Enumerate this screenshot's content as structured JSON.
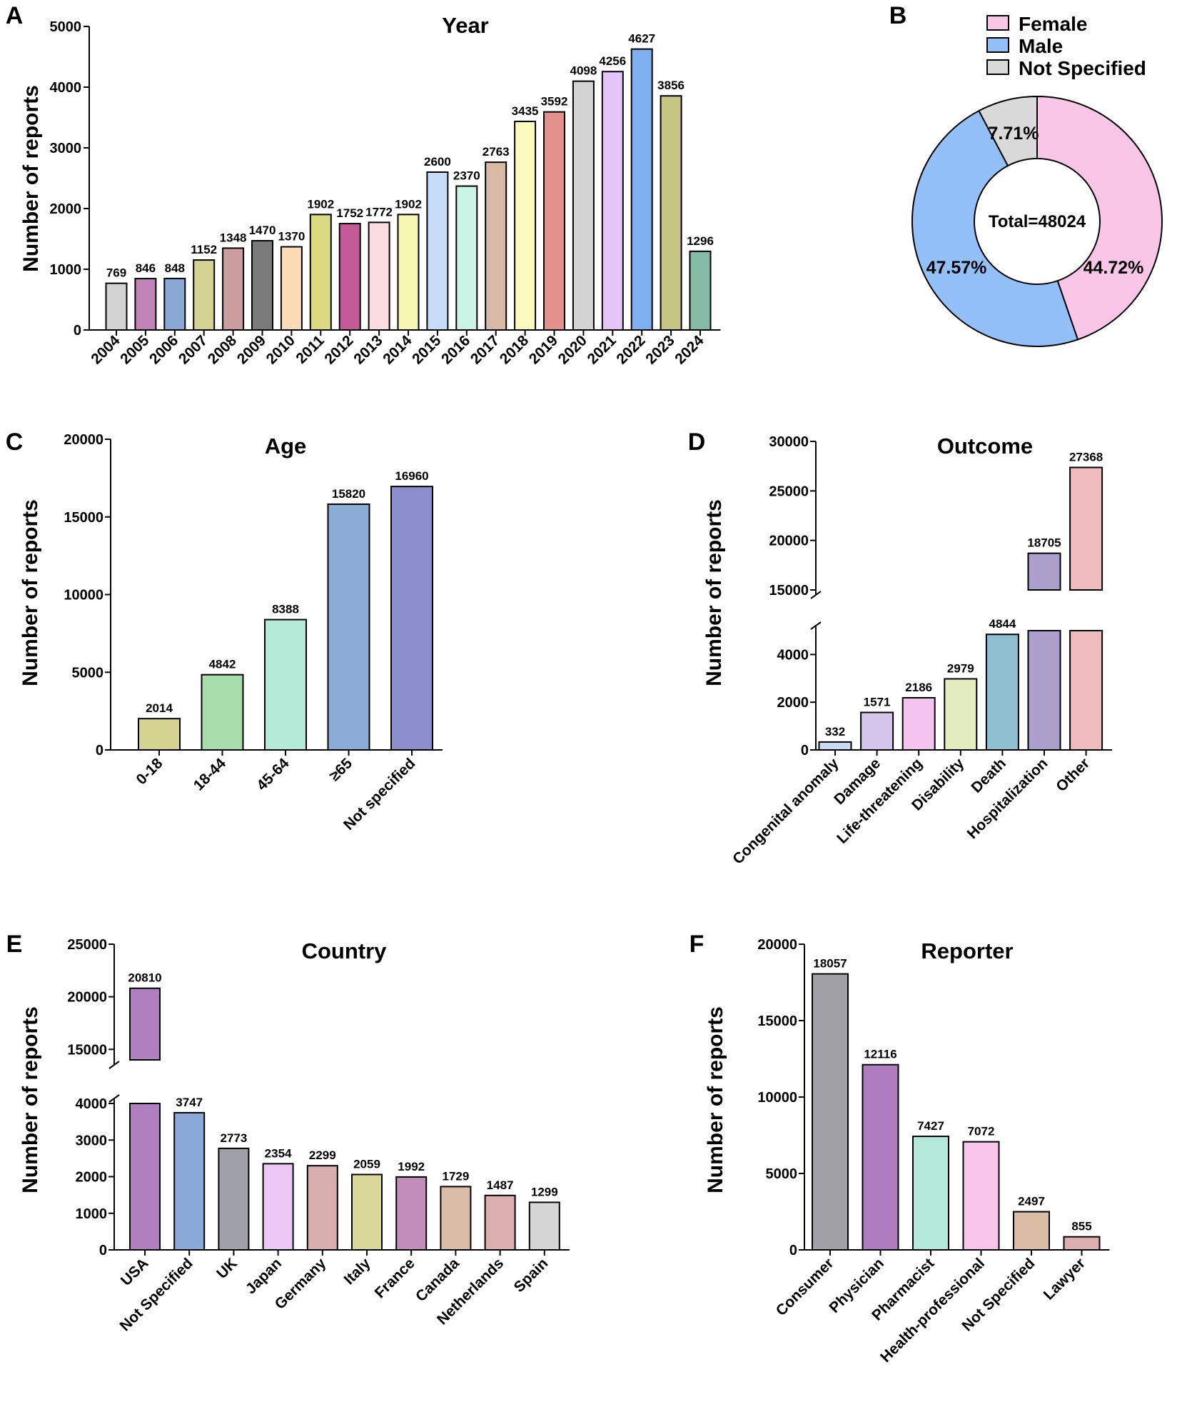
{
  "chart_data": [
    {
      "id": "A",
      "type": "bar",
      "panel_label": "A",
      "title": "Year",
      "xlabel": "",
      "ylabel": "Number of reports",
      "ylim": [
        0,
        5000
      ],
      "yticks": [
        0,
        1000,
        2000,
        3000,
        4000,
        5000
      ],
      "categories": [
        "2004",
        "2005",
        "2006",
        "2007",
        "2008",
        "2009",
        "2010",
        "2011",
        "2012",
        "2013",
        "2014",
        "2015",
        "2016",
        "2017",
        "2018",
        "2019",
        "2020",
        "2021",
        "2022",
        "2023",
        "2024"
      ],
      "values": [
        769,
        846,
        848,
        1152,
        1348,
        1470,
        1370,
        1902,
        1752,
        1772,
        1902,
        2600,
        2370,
        2763,
        3435,
        3592,
        4098,
        4256,
        4627,
        3856,
        1296
      ],
      "colors": [
        "#d3d3d3",
        "#c283b8",
        "#8aa8d4",
        "#d3d291",
        "#cc9d9e",
        "#7a7a7a",
        "#fcdcb6",
        "#dcd982",
        "#c45a98",
        "#fbdde1",
        "#f5f7b2",
        "#c7dcf9",
        "#ccf4e6",
        "#d8b9a6",
        "#fbfbc0",
        "#e3918a",
        "#d3d3d3",
        "#e5c5f9",
        "#7fb0f2",
        "#c6c584",
        "#84bca5"
      ]
    },
    {
      "id": "B",
      "type": "pie",
      "panel_label": "B",
      "title": "",
      "center_label": "Total=48024",
      "slices": [
        {
          "label": "Female",
          "value": 44.72,
          "pct_label": "44.72%",
          "color": "#f9c6e8"
        },
        {
          "label": "Male",
          "value": 47.57,
          "pct_label": "47.57%",
          "color": "#93c0f8"
        },
        {
          "label": "Not Specified",
          "value": 7.71,
          "pct_label": "7.71%",
          "color": "#d9d9d9"
        }
      ],
      "legend_position": "top-right"
    },
    {
      "id": "C",
      "type": "bar",
      "panel_label": "C",
      "title": "Age",
      "xlabel": "",
      "ylabel": "Number of reports",
      "ylim": [
        0,
        20000
      ],
      "yticks": [
        0,
        5000,
        10000,
        15000,
        20000
      ],
      "categories": [
        "0-18",
        "18-44",
        "45-64",
        "≥65",
        "Not specified"
      ],
      "values": [
        2014,
        4842,
        8388,
        15820,
        16960
      ],
      "colors": [
        "#d4d38f",
        "#a8deab",
        "#b5ead8",
        "#8bacd6",
        "#8b8ecb"
      ]
    },
    {
      "id": "D",
      "type": "bar",
      "panel_label": "D",
      "title": "Outcome",
      "xlabel": "",
      "ylabel": "Number of reports",
      "ylim": [
        0,
        30000
      ],
      "axis_break": {
        "lower_max": 5000,
        "upper_min": 15000
      },
      "yticks": [
        0,
        2000,
        4000,
        15000,
        20000,
        25000,
        30000
      ],
      "categories": [
        "Congenital anomaly",
        "Damage",
        "Life-threatening",
        "Disability",
        "Death",
        "Hospitalization",
        "Other"
      ],
      "values": [
        332,
        1571,
        2186,
        2979,
        4844,
        18705,
        27368
      ],
      "colors": [
        "#c9daf5",
        "#d6c6ec",
        "#f4c4ee",
        "#e4edbf",
        "#8fc0d2",
        "#ad9fcc",
        "#efbbbd"
      ]
    },
    {
      "id": "E",
      "type": "bar",
      "panel_label": "E",
      "title": "Country",
      "xlabel": "",
      "ylabel": "Number of reports",
      "ylim": [
        0,
        25000
      ],
      "axis_break": {
        "lower_max": 4000,
        "upper_min": 14000
      },
      "yticks": [
        0,
        1000,
        2000,
        3000,
        4000,
        15000,
        20000,
        25000
      ],
      "categories": [
        "USA",
        "Not Specified",
        "UK",
        "Japan",
        "Germany",
        "Italy",
        "France",
        "Canada",
        "Netherlands",
        "Spain"
      ],
      "values": [
        20810,
        3747,
        2773,
        2354,
        2299,
        2059,
        1992,
        1729,
        1487,
        1299
      ],
      "colors": [
        "#b07fbf",
        "#8ba9d6",
        "#a0a0a8",
        "#ecc8f6",
        "#d8aeae",
        "#dad899",
        "#c28db8",
        "#dbbca6",
        "#dcaeb0",
        "#d6d6d6"
      ]
    },
    {
      "id": "F",
      "type": "bar",
      "panel_label": "F",
      "title": "Reporter",
      "xlabel": "",
      "ylabel": "Number of reports",
      "ylim": [
        0,
        20000
      ],
      "yticks": [
        0,
        5000,
        10000,
        15000,
        20000
      ],
      "categories": [
        "Consumer",
        "Physician",
        "Pharmacist",
        "Health-professional",
        "Not Specified",
        "Lawyer"
      ],
      "values": [
        18057,
        12116,
        7427,
        7072,
        2497,
        855
      ],
      "colors": [
        "#a0a0a6",
        "#b07cc0",
        "#b5eadb",
        "#f7c6ea",
        "#dcbca4",
        "#ddaeb0"
      ]
    }
  ]
}
